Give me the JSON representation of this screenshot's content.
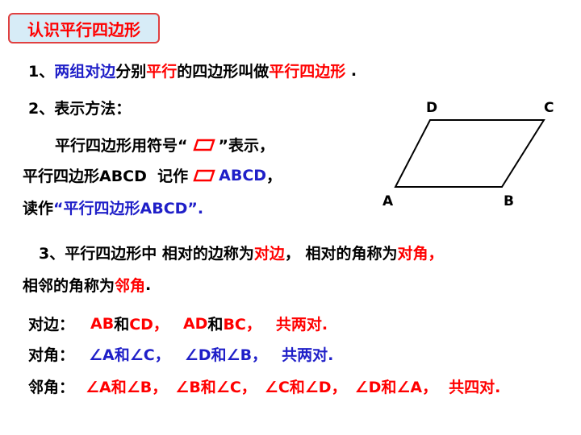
{
  "title": "认识平行四边形",
  "item1": [
    "1、",
    "两组对边",
    "分别",
    "平行",
    "的四边形叫做",
    "平行四边形",
    " ."
  ],
  "item2": {
    "heading": "2、表示方法：",
    "line1": [
      "平行四边形用符号“",
      "”表示，"
    ],
    "line2": [
      "平行四边形ABCD  记作",
      "ABCD",
      "，"
    ],
    "line3": [
      "读作",
      "“平行四边形ABCD”."
    ]
  },
  "diagram": {
    "vertices": [
      "D",
      "C",
      "A",
      "B"
    ]
  },
  "item3": {
    "line1": [
      "3、平行四边形中 相对的边称为",
      "对边",
      "， 相对的角称为",
      "对角，"
    ],
    "line2": [
      "相邻的角称为",
      "邻角",
      "."
    ]
  },
  "rows": [
    {
      "label": "对边：",
      "parts": [
        "AB",
        "和",
        "CD，",
        "AD",
        "和",
        "BC，",
        "共两对."
      ]
    },
    {
      "label": "对角：",
      "parts": [
        "∠A和∠C，",
        "∠D和∠B，",
        "共两对."
      ]
    },
    {
      "label": "邻角：",
      "parts": [
        "∠A和∠B，",
        "∠B和∠C，",
        "∠C和∠D，",
        "∠D和∠A，",
        "共四对."
      ]
    }
  ]
}
